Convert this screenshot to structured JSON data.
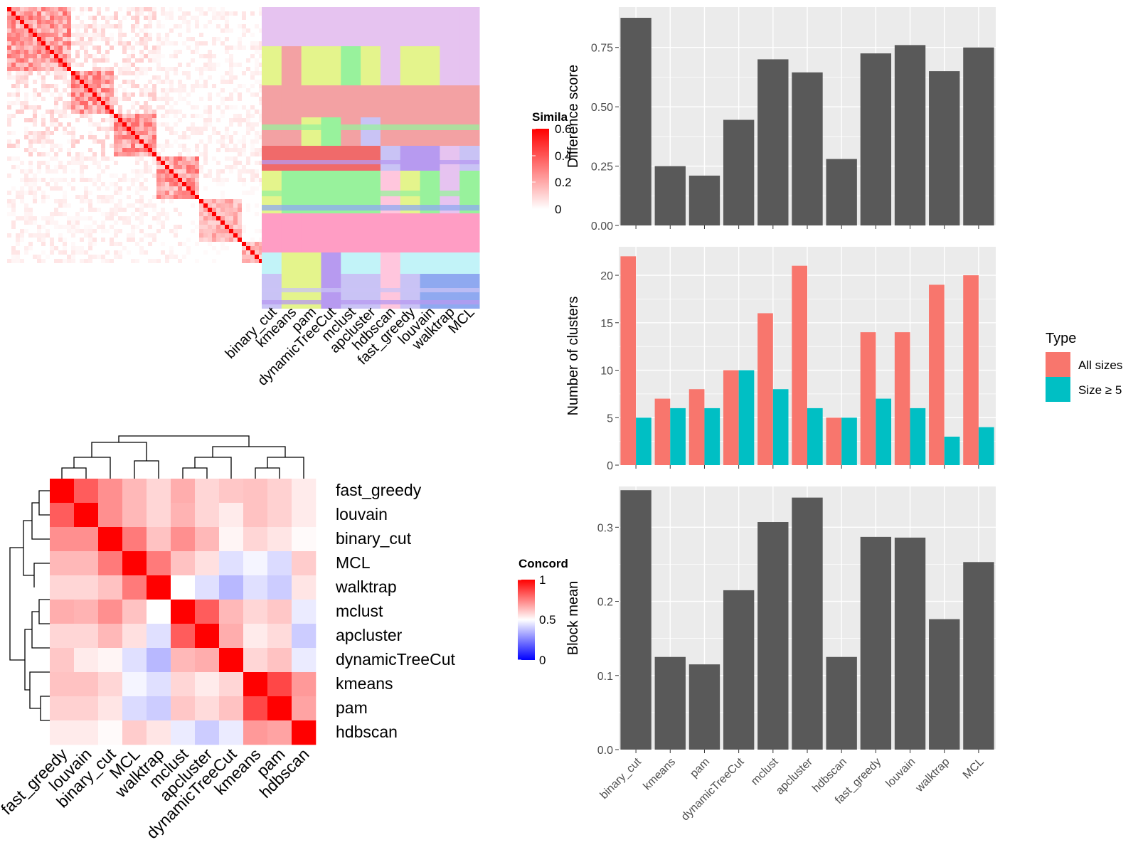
{
  "chart_data": [
    {
      "type": "heatmap",
      "panel": "cell-similarity",
      "legend_title": "Simila",
      "legend_ticks": [
        "0.6",
        "0.4",
        "0.2",
        "0"
      ],
      "scale": [
        0,
        0.6
      ],
      "colors": [
        "#ffffff",
        "#ff0000"
      ]
    },
    {
      "type": "heatmap",
      "panel": "cluster-assignments",
      "methods": [
        "binary_cut",
        "kmeans",
        "pam",
        "dynamicTreeCut",
        "mclust",
        "apcluster",
        "hdbscan",
        "fast_greedy",
        "louvain",
        "walktrap",
        "MCL"
      ]
    },
    {
      "type": "heatmap",
      "panel": "concordance",
      "legend_title": "Concord",
      "legend_ticks": [
        "1",
        "0.5",
        "0"
      ],
      "scale": [
        0,
        1
      ],
      "colors": [
        "#0000ff",
        "#ffffff",
        "#ff0000"
      ],
      "rows": [
        "fast_greedy",
        "louvain",
        "binary_cut",
        "MCL",
        "walktrap",
        "mclust",
        "apcluster",
        "dynamicTreeCut",
        "kmeans",
        "pam",
        "hdbscan"
      ],
      "columns": [
        "fast_greedy",
        "louvain",
        "binary_cut",
        "MCL",
        "walktrap",
        "mclust",
        "apcluster",
        "dynamicTreeCut",
        "kmeans",
        "pam",
        "hdbscan"
      ],
      "values": [
        [
          1.0,
          0.82,
          0.72,
          0.64,
          0.58,
          0.66,
          0.58,
          0.61,
          0.62,
          0.59,
          0.54
        ],
        [
          0.82,
          1.0,
          0.72,
          0.64,
          0.58,
          0.65,
          0.58,
          0.54,
          0.62,
          0.59,
          0.54
        ],
        [
          0.72,
          0.72,
          1.0,
          0.76,
          0.62,
          0.72,
          0.64,
          0.52,
          0.58,
          0.55,
          0.51
        ],
        [
          0.64,
          0.64,
          0.76,
          1.0,
          0.76,
          0.62,
          0.56,
          0.44,
          0.48,
          0.43,
          0.6
        ],
        [
          0.58,
          0.58,
          0.62,
          0.76,
          1.0,
          0.5,
          0.44,
          0.36,
          0.44,
          0.4,
          0.55
        ],
        [
          0.66,
          0.65,
          0.72,
          0.62,
          0.5,
          1.0,
          0.82,
          0.64,
          0.58,
          0.61,
          0.46
        ],
        [
          0.58,
          0.58,
          0.64,
          0.56,
          0.44,
          0.82,
          1.0,
          0.66,
          0.54,
          0.57,
          0.4
        ],
        [
          0.61,
          0.54,
          0.52,
          0.44,
          0.36,
          0.64,
          0.66,
          1.0,
          0.58,
          0.62,
          0.46
        ],
        [
          0.62,
          0.62,
          0.58,
          0.48,
          0.44,
          0.58,
          0.54,
          0.58,
          1.0,
          0.86,
          0.7
        ],
        [
          0.59,
          0.59,
          0.55,
          0.43,
          0.4,
          0.61,
          0.57,
          0.62,
          0.86,
          1.0,
          0.68
        ],
        [
          0.54,
          0.54,
          0.51,
          0.6,
          0.55,
          0.46,
          0.4,
          0.46,
          0.7,
          0.68,
          1.0
        ]
      ]
    },
    {
      "type": "bar",
      "panel": "difference-score",
      "categories": [
        "binary_cut",
        "kmeans",
        "pam",
        "dynamicTreeCut",
        "mclust",
        "apcluster",
        "hdbscan",
        "fast_greedy",
        "louvain",
        "walktrap",
        "MCL"
      ],
      "values": [
        0.875,
        0.25,
        0.21,
        0.445,
        0.7,
        0.645,
        0.28,
        0.725,
        0.76,
        0.65,
        0.75
      ],
      "ylabel": "Difference score",
      "ylim": [
        0,
        0.92
      ],
      "yticks": [
        "0.00",
        "0.25",
        "0.50",
        "0.75"
      ],
      "ytick_values": [
        0,
        0.25,
        0.5,
        0.75
      ],
      "bar_color": "#595959",
      "panel_bg": "#ebebeb",
      "grid": true
    },
    {
      "type": "bar",
      "panel": "number-of-clusters",
      "categories": [
        "binary_cut",
        "kmeans",
        "pam",
        "dynamicTreeCut",
        "mclust",
        "apcluster",
        "hdbscan",
        "fast_greedy",
        "louvain",
        "walktrap",
        "MCL"
      ],
      "series": [
        {
          "name": "All sizes",
          "values": [
            22,
            7,
            8,
            10,
            16,
            21,
            5,
            14,
            14,
            19,
            20
          ],
          "color": "#f8766d"
        },
        {
          "name": "Size ≥ 5",
          "values": [
            5,
            6,
            6,
            10,
            8,
            6,
            5,
            7,
            6,
            3,
            4
          ],
          "color": "#00bfc4"
        }
      ],
      "ylabel": "Number of clusters",
      "ylim": [
        0,
        23
      ],
      "yticks": [
        "0",
        "5",
        "10",
        "15",
        "20"
      ],
      "ytick_values": [
        0,
        5,
        10,
        15,
        20
      ],
      "legend_title": "Type",
      "legend_position": "right",
      "panel_bg": "#ebebeb",
      "grid": true
    },
    {
      "type": "bar",
      "panel": "block-mean",
      "categories": [
        "binary_cut",
        "kmeans",
        "pam",
        "dynamicTreeCut",
        "mclust",
        "apcluster",
        "hdbscan",
        "fast_greedy",
        "louvain",
        "walktrap",
        "MCL"
      ],
      "values": [
        0.35,
        0.125,
        0.115,
        0.215,
        0.307,
        0.34,
        0.125,
        0.287,
        0.286,
        0.176,
        0.253
      ],
      "ylabel": "Block mean",
      "ylim": [
        0,
        0.355
      ],
      "yticks": [
        "0.0",
        "0.1",
        "0.2",
        "0.3"
      ],
      "ytick_values": [
        0,
        0.1,
        0.2,
        0.3
      ],
      "bar_color": "#595959",
      "panel_bg": "#ebebeb",
      "grid": true
    }
  ]
}
